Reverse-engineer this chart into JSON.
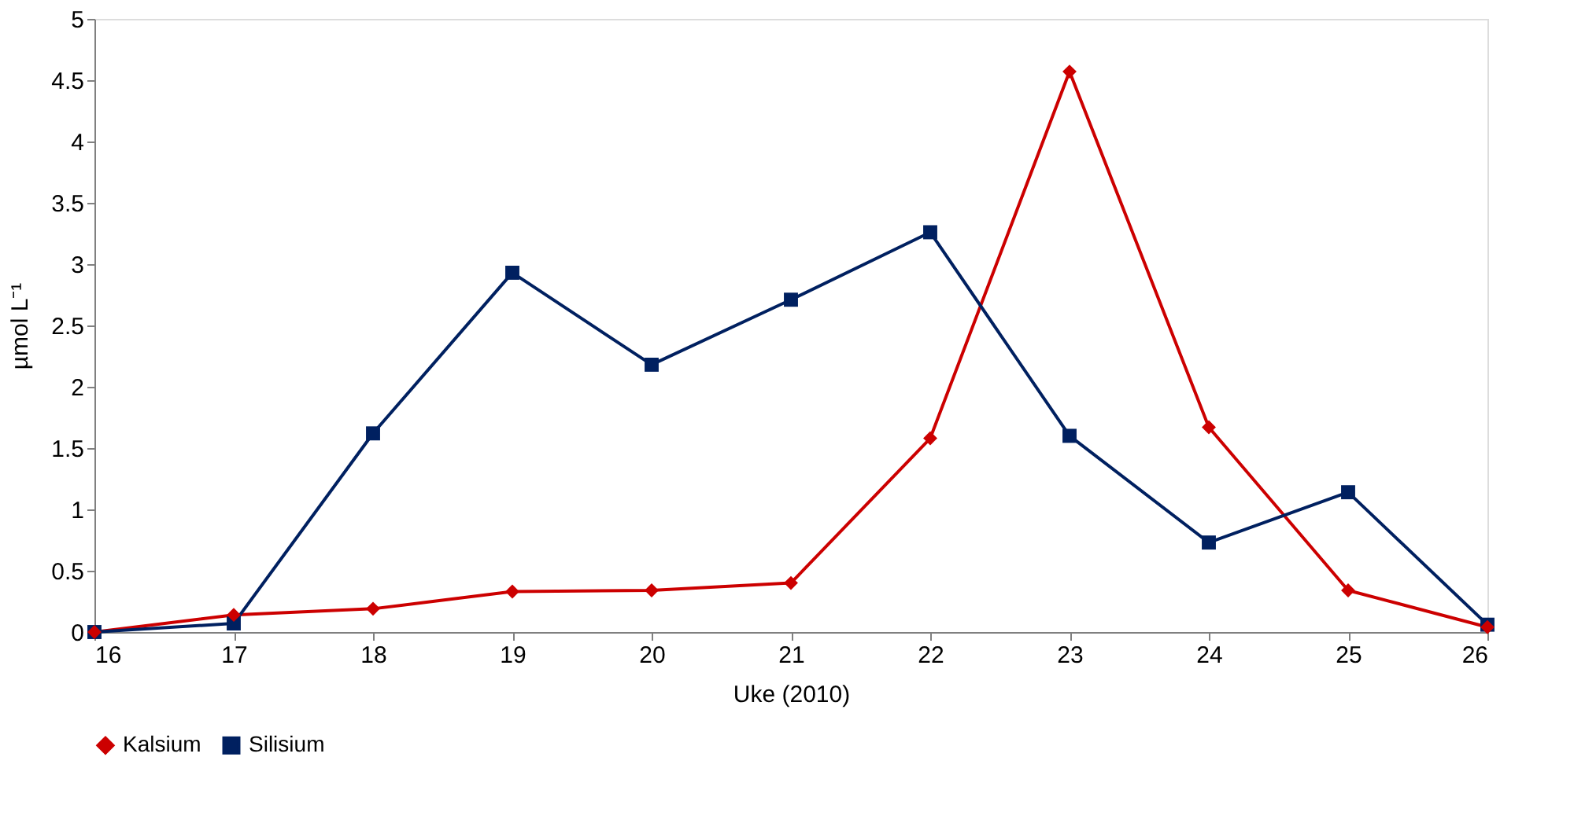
{
  "chart_data": {
    "type": "line",
    "xlabel": "Uke (2010)",
    "ylabel": "µmol L⁻¹",
    "x": [
      16,
      17,
      18,
      19,
      20,
      21,
      22,
      23,
      24,
      25,
      26
    ],
    "series": [
      {
        "name": "Kalsium",
        "color": "#cc0000",
        "marker": "diamond",
        "values": [
          0,
          0.14,
          0.19,
          0.33,
          0.34,
          0.4,
          1.58,
          4.57,
          1.67,
          0.34,
          0.04
        ]
      },
      {
        "name": "Silisium",
        "color": "#002060",
        "marker": "square",
        "values": [
          0,
          0.07,
          1.62,
          2.93,
          2.18,
          2.71,
          3.26,
          1.6,
          0.73,
          1.14,
          0.06
        ]
      }
    ],
    "xlim": [
      16,
      26
    ],
    "xticks": [
      16,
      17,
      18,
      19,
      20,
      21,
      22,
      23,
      24,
      25,
      26
    ],
    "ylim": [
      0,
      5
    ],
    "yticks": [
      0,
      0.5,
      1,
      1.5,
      2,
      2.5,
      3,
      3.5,
      4,
      4.5,
      5
    ],
    "grid": false,
    "legend": "bottom",
    "line_style": "solid"
  }
}
